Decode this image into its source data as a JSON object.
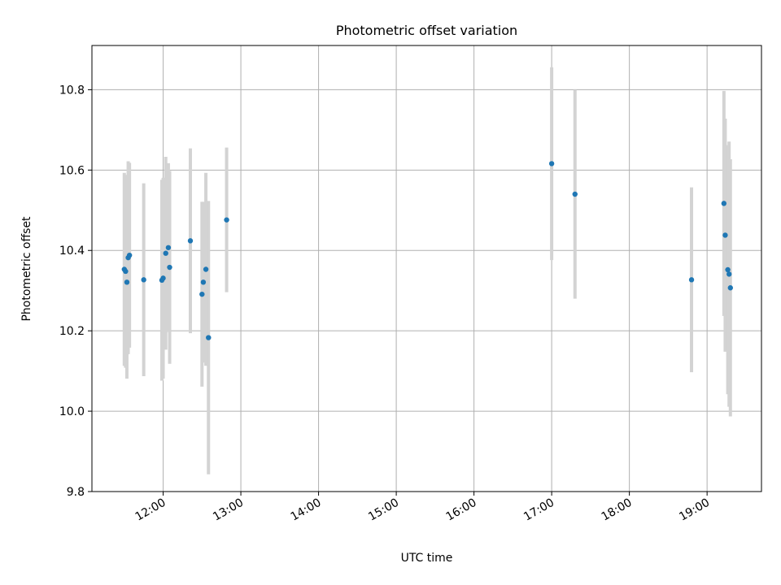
{
  "chart_data": {
    "type": "scatter",
    "title": "Photometric offset variation",
    "xlabel": "UTC time",
    "ylabel": "Photometric offset",
    "xlim": [
      "11:05",
      "19:42"
    ],
    "ylim": [
      9.8,
      10.91
    ],
    "x_ticks": [
      "12:00",
      "13:00",
      "14:00",
      "15:00",
      "16:00",
      "17:00",
      "18:00",
      "19:00"
    ],
    "y_ticks": [
      "9.8",
      "10.0",
      "10.2",
      "10.4",
      "10.6",
      "10.8"
    ],
    "grid": true,
    "point_color": "#1f77b4",
    "errorbar_color": "#d3d3d3",
    "points": [
      {
        "time": "11:30",
        "y": 10.353,
        "err": 0.24
      },
      {
        "time": "11:31",
        "y": 10.348,
        "err": 0.24
      },
      {
        "time": "11:32",
        "y": 10.321,
        "err": 0.24
      },
      {
        "time": "11:33",
        "y": 10.382,
        "err": 0.24
      },
      {
        "time": "11:34",
        "y": 10.388,
        "err": 0.23
      },
      {
        "time": "11:45",
        "y": 10.327,
        "err": 0.24
      },
      {
        "time": "11:59",
        "y": 10.326,
        "err": 0.25
      },
      {
        "time": "11:60",
        "y": 10.331,
        "err": 0.25
      },
      {
        "time": "12:02",
        "y": 10.393,
        "err": 0.24
      },
      {
        "time": "12:04",
        "y": 10.407,
        "err": 0.21
      },
      {
        "time": "12:05",
        "y": 10.358,
        "err": 0.24
      },
      {
        "time": "12:21",
        "y": 10.424,
        "err": 0.23
      },
      {
        "time": "12:30",
        "y": 10.291,
        "err": 0.23
      },
      {
        "time": "12:31",
        "y": 10.321,
        "err": 0.2
      },
      {
        "time": "12:33",
        "y": 10.353,
        "err": 0.24
      },
      {
        "time": "12:35",
        "y": 10.183,
        "err": 0.34
      },
      {
        "time": "12:49",
        "y": 10.476,
        "err": 0.18
      },
      {
        "time": "17:00",
        "y": 10.616,
        "err": 0.24
      },
      {
        "time": "17:18",
        "y": 10.54,
        "err": 0.26
      },
      {
        "time": "18:48",
        "y": 10.327,
        "err": 0.23
      },
      {
        "time": "19:13",
        "y": 10.517,
        "err": 0.28
      },
      {
        "time": "19:14",
        "y": 10.438,
        "err": 0.29
      },
      {
        "time": "19:16",
        "y": 10.352,
        "err": 0.31
      },
      {
        "time": "19:17",
        "y": 10.341,
        "err": 0.33
      },
      {
        "time": "19:18",
        "y": 10.307,
        "err": 0.32
      }
    ]
  }
}
